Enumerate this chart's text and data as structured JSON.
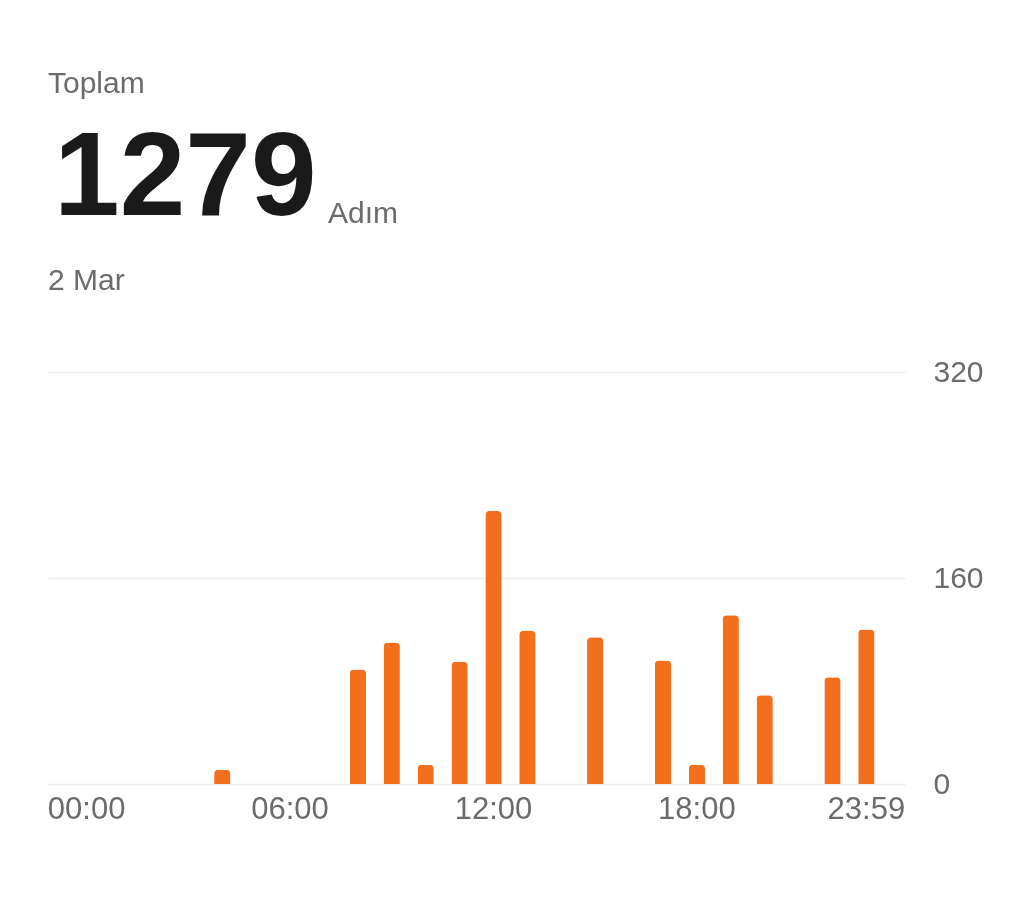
{
  "chart_data": {
    "type": "bar",
    "title": "Toplam",
    "annotations": [
      "1279",
      "Adım",
      "2 Mar"
    ],
    "categories": [
      "00:00",
      null,
      null,
      null,
      null,
      null,
      "06:00",
      null,
      null,
      null,
      null,
      null,
      "12:00",
      null,
      null,
      null,
      null,
      null,
      "18:00",
      null,
      null,
      null,
      null,
      "23:59"
    ],
    "values": [
      null,
      null,
      null,
      null,
      11,
      null,
      null,
      null,
      89,
      110,
      15,
      95,
      212,
      119,
      null,
      114,
      null,
      96,
      15,
      131,
      69,
      null,
      83,
      120
    ],
    "color": "#f36f1b",
    "ylim": [
      0,
      320
    ],
    "yticks": [
      0,
      160,
      320
    ],
    "grid": "y"
  }
}
